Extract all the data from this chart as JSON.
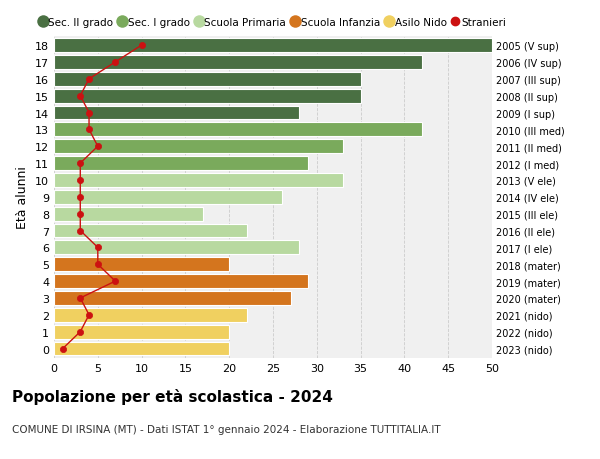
{
  "ages": [
    18,
    17,
    16,
    15,
    14,
    13,
    12,
    11,
    10,
    9,
    8,
    7,
    6,
    5,
    4,
    3,
    2,
    1,
    0
  ],
  "right_labels": [
    "2005 (V sup)",
    "2006 (IV sup)",
    "2007 (III sup)",
    "2008 (II sup)",
    "2009 (I sup)",
    "2010 (III med)",
    "2011 (II med)",
    "2012 (I med)",
    "2013 (V ele)",
    "2014 (IV ele)",
    "2015 (III ele)",
    "2016 (II ele)",
    "2017 (I ele)",
    "2018 (mater)",
    "2019 (mater)",
    "2020 (mater)",
    "2021 (nido)",
    "2022 (nido)",
    "2023 (nido)"
  ],
  "bar_values": [
    50,
    42,
    35,
    35,
    28,
    42,
    33,
    29,
    33,
    26,
    17,
    22,
    28,
    20,
    29,
    27,
    22,
    20,
    20
  ],
  "bar_colors": [
    "#4a7043",
    "#4a7043",
    "#4a7043",
    "#4a7043",
    "#4a7043",
    "#7aaa5c",
    "#7aaa5c",
    "#7aaa5c",
    "#b8d9a0",
    "#b8d9a0",
    "#b8d9a0",
    "#b8d9a0",
    "#b8d9a0",
    "#d4751e",
    "#d4751e",
    "#d4751e",
    "#f0d060",
    "#f0d060",
    "#f0d060"
  ],
  "stranieri_values": [
    10,
    7,
    4,
    3,
    4,
    4,
    5,
    3,
    3,
    3,
    3,
    3,
    5,
    5,
    7,
    3,
    4,
    3,
    1
  ],
  "legend_labels": [
    "Sec. II grado",
    "Sec. I grado",
    "Scuola Primaria",
    "Scuola Infanzia",
    "Asilo Nido",
    "Stranieri"
  ],
  "legend_colors": [
    "#4a7043",
    "#7aaa5c",
    "#b8d9a0",
    "#d4751e",
    "#f0d060",
    "#cc1111"
  ],
  "ylabel_left": "Età alunni",
  "title": "Popolazione per età scolastica - 2024",
  "subtitle": "COMUNE DI IRSINA (MT) - Dati ISTAT 1° gennaio 2024 - Elaborazione TUTTITALIA.IT",
  "xlim": [
    0,
    50
  ],
  "xticks": [
    0,
    5,
    10,
    15,
    20,
    25,
    30,
    35,
    40,
    45,
    50
  ],
  "bg_color": "#f0f0f0",
  "grid_color": "#cccccc"
}
